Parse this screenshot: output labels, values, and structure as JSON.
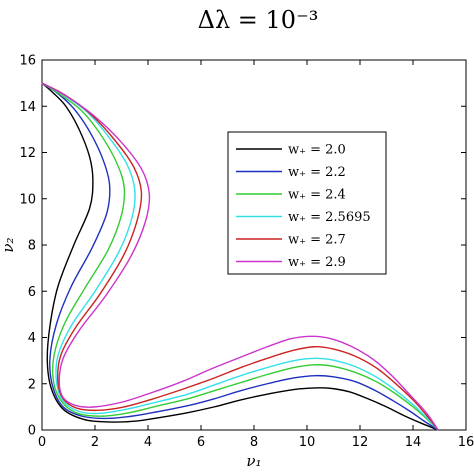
{
  "chart_data": {
    "type": "line",
    "title": "Δλ = 10⁻³",
    "xlabel": "ν₁",
    "ylabel": "ν₂",
    "xlim": [
      0,
      16
    ],
    "ylim": [
      0,
      16
    ],
    "xticks": [
      0,
      2,
      4,
      6,
      8,
      10,
      12,
      14,
      16
    ],
    "yticks": [
      0,
      2,
      4,
      6,
      8,
      10,
      12,
      14,
      16
    ],
    "grid": false,
    "legend_position": "top-right",
    "series": [
      {
        "name": "w₊ = 2.0",
        "color": "#000000",
        "x": [
          0.0,
          0.4,
          0.9,
          1.4,
          1.8,
          1.92,
          1.8,
          1.2,
          0.6,
          0.3,
          0.2,
          0.35,
          0.8,
          1.6,
          2.5,
          3.5,
          4.5,
          5.5,
          6.5,
          7.5,
          8.5,
          9.5,
          10.3,
          10.9,
          11.6,
          12.3,
          13.0,
          13.7,
          14.3,
          14.95
        ],
        "y": [
          15.0,
          14.6,
          14.0,
          13.0,
          11.8,
          10.8,
          9.6,
          8.0,
          6.2,
          4.5,
          3.0,
          1.8,
          0.9,
          0.45,
          0.35,
          0.38,
          0.55,
          0.75,
          1.0,
          1.3,
          1.55,
          1.75,
          1.82,
          1.8,
          1.65,
          1.35,
          1.0,
          0.6,
          0.3,
          0.0
        ]
      },
      {
        "name": "w₊ = 2.2",
        "color": "#1f2fbf",
        "x": [
          0.0,
          0.6,
          1.2,
          1.8,
          2.3,
          2.55,
          2.45,
          1.9,
          1.1,
          0.55,
          0.3,
          0.4,
          0.8,
          1.5,
          2.4,
          3.4,
          4.4,
          5.5,
          6.5,
          7.5,
          8.5,
          9.5,
          10.3,
          11.0,
          11.8,
          12.5,
          13.2,
          13.9,
          14.4,
          14.95
        ],
        "y": [
          15.0,
          14.55,
          13.9,
          12.9,
          11.7,
          10.6,
          9.4,
          7.9,
          6.2,
          4.6,
          3.1,
          1.9,
          1.0,
          0.6,
          0.5,
          0.6,
          0.8,
          1.05,
          1.35,
          1.7,
          2.0,
          2.25,
          2.35,
          2.3,
          2.1,
          1.75,
          1.3,
          0.8,
          0.4,
          0.0
        ]
      },
      {
        "name": "w₊ = 2.4",
        "color": "#33cc33",
        "x": [
          0.0,
          0.7,
          1.5,
          2.2,
          2.8,
          3.1,
          3.0,
          2.5,
          1.6,
          0.85,
          0.45,
          0.45,
          0.8,
          1.4,
          2.3,
          3.3,
          4.4,
          5.5,
          6.5,
          7.5,
          8.5,
          9.5,
          10.3,
          11.0,
          11.8,
          12.6,
          13.3,
          14.0,
          14.5,
          14.95
        ],
        "y": [
          15.0,
          14.5,
          13.8,
          12.8,
          11.6,
          10.5,
          9.3,
          7.8,
          6.1,
          4.6,
          3.2,
          2.0,
          1.15,
          0.7,
          0.6,
          0.75,
          1.05,
          1.35,
          1.7,
          2.05,
          2.4,
          2.7,
          2.82,
          2.75,
          2.5,
          2.1,
          1.6,
          1.0,
          0.5,
          0.0
        ]
      },
      {
        "name": "w₊ = 2.5695",
        "color": "#33e0e8",
        "x": [
          0.0,
          0.8,
          1.7,
          2.5,
          3.2,
          3.5,
          3.4,
          2.9,
          2.0,
          1.1,
          0.6,
          0.55,
          0.8,
          1.4,
          2.2,
          3.2,
          4.3,
          5.5,
          6.5,
          7.5,
          8.5,
          9.5,
          10.3,
          11.0,
          11.8,
          12.6,
          13.3,
          14.0,
          14.5,
          14.95
        ],
        "y": [
          15.0,
          14.5,
          13.75,
          12.7,
          11.5,
          10.4,
          9.2,
          7.7,
          6.0,
          4.5,
          3.2,
          2.05,
          1.25,
          0.8,
          0.72,
          0.9,
          1.2,
          1.55,
          1.95,
          2.35,
          2.7,
          3.0,
          3.1,
          3.02,
          2.75,
          2.3,
          1.75,
          1.1,
          0.55,
          0.0
        ]
      },
      {
        "name": "w₊ = 2.7",
        "color": "#cc2222",
        "x": [
          0.0,
          0.85,
          1.8,
          2.7,
          3.45,
          3.75,
          3.6,
          3.1,
          2.2,
          1.25,
          0.7,
          0.6,
          0.8,
          1.3,
          2.1,
          3.1,
          4.2,
          5.4,
          6.5,
          7.5,
          8.5,
          9.5,
          10.3,
          11.0,
          11.8,
          12.6,
          13.3,
          14.0,
          14.5,
          14.95
        ],
        "y": [
          15.0,
          14.5,
          13.7,
          12.6,
          11.4,
          10.3,
          9.1,
          7.6,
          5.9,
          4.4,
          3.2,
          2.1,
          1.35,
          0.95,
          0.85,
          1.0,
          1.35,
          1.8,
          2.25,
          2.7,
          3.1,
          3.45,
          3.6,
          3.5,
          3.2,
          2.7,
          2.05,
          1.3,
          0.65,
          0.0
        ]
      },
      {
        "name": "w₊ = 2.9",
        "color": "#cc33cc",
        "x": [
          0.0,
          0.9,
          1.95,
          2.95,
          3.75,
          4.05,
          3.9,
          3.35,
          2.4,
          1.4,
          0.8,
          0.65,
          0.8,
          1.3,
          2.0,
          3.0,
          4.1,
          5.3,
          6.4,
          7.5,
          8.5,
          9.4,
          10.2,
          10.9,
          11.7,
          12.5,
          13.2,
          13.9,
          14.5,
          14.95
        ],
        "y": [
          15.0,
          14.45,
          13.6,
          12.5,
          11.3,
          10.2,
          9.0,
          7.5,
          5.8,
          4.3,
          3.1,
          2.1,
          1.4,
          1.05,
          1.0,
          1.2,
          1.6,
          2.1,
          2.65,
          3.15,
          3.6,
          3.95,
          4.05,
          3.95,
          3.6,
          3.05,
          2.35,
          1.5,
          0.75,
          0.0
        ]
      }
    ]
  }
}
